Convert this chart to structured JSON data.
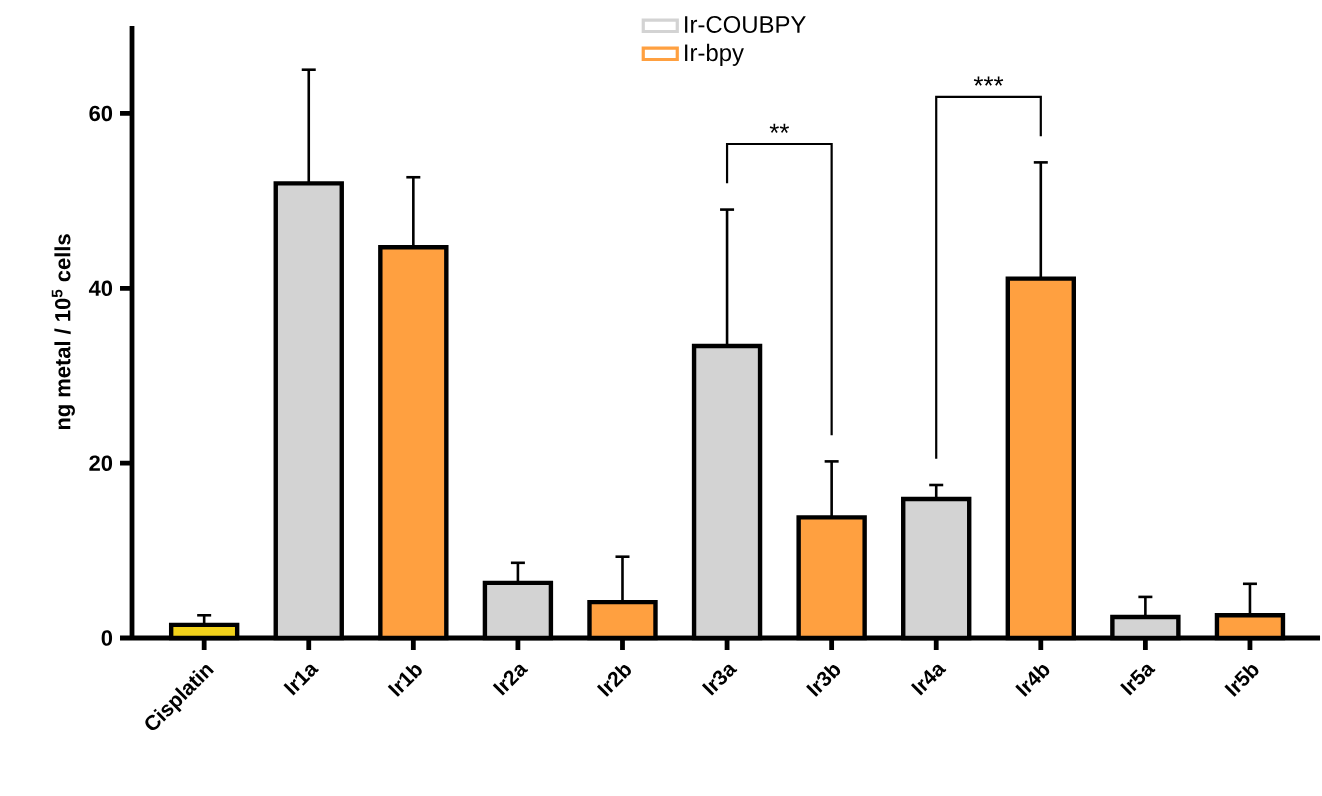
{
  "chart_data": {
    "type": "bar",
    "ylabel": "ng metal / 10$^{5}$ cells",
    "categories": [
      "Cisplatin",
      "Ir1a",
      "Ir1b",
      "Ir2a",
      "Ir2b",
      "Ir3a",
      "Ir3b",
      "Ir4a",
      "Ir4b",
      "Ir5a",
      "Ir5b"
    ],
    "series": [
      {
        "color": "#f2d21b",
        "values": [
          1.5,
          null,
          null,
          null,
          null,
          null,
          null,
          null,
          null,
          null,
          null
        ],
        "errors": [
          [
            1.5,
            2.6
          ],
          null,
          null,
          null,
          null,
          null,
          null,
          null,
          null,
          null,
          null
        ]
      },
      {
        "name": "Ir-COUBPY",
        "color": "#d3d3d3",
        "values": [
          null,
          52,
          null,
          6.3,
          null,
          33.4,
          null,
          15.9,
          null,
          2.4,
          null
        ],
        "errors": [
          null,
          [
            52,
            65
          ],
          null,
          [
            6.3,
            8.6
          ],
          null,
          [
            33.4,
            49
          ],
          null,
          [
            15.9,
            17.5
          ],
          null,
          [
            2.4,
            4.7
          ],
          null
        ]
      },
      {
        "name": "Ir-bpy",
        "color": "#ffa040",
        "values": [
          null,
          null,
          44.7,
          null,
          4.1,
          null,
          13.8,
          null,
          41.1,
          null,
          2.6
        ],
        "errors": [
          null,
          null,
          [
            44.7,
            52.7
          ],
          null,
          [
            4.1,
            9.3
          ],
          null,
          [
            13.8,
            20.2
          ],
          null,
          [
            41.1,
            54.4
          ],
          null,
          [
            2.6,
            6.2
          ]
        ]
      }
    ],
    "ylim": [
      0,
      70
    ],
    "yticks": [
      0,
      20,
      40,
      60
    ],
    "legend": "top",
    "annotations": [
      "**",
      "***"
    ]
  }
}
